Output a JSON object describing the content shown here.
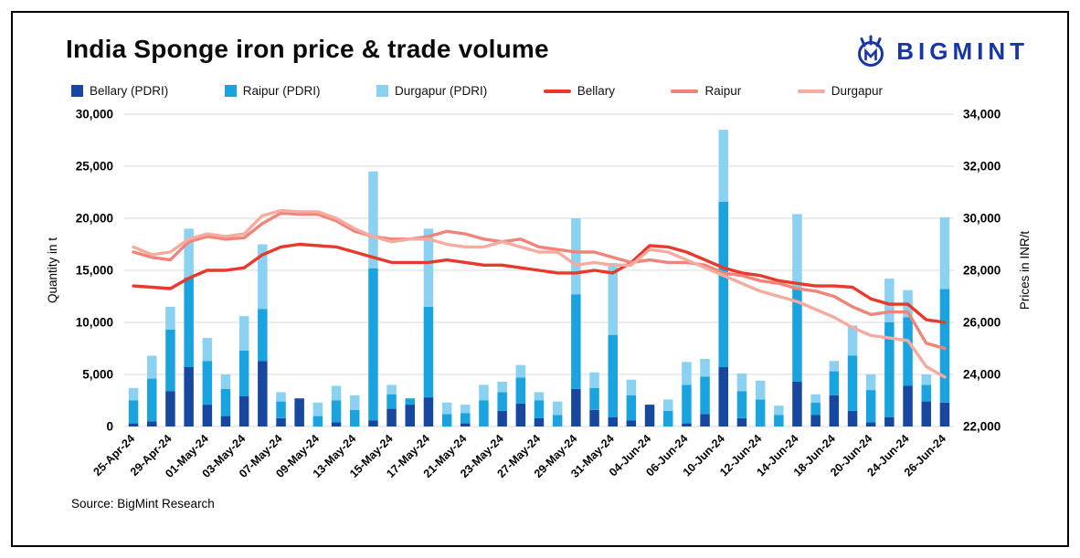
{
  "header": {
    "title": "India Sponge iron price & trade volume",
    "logo_text": "BIGMINT"
  },
  "source": "Source: BigMint Research",
  "chart_data": {
    "type": "bar+line",
    "title": "India Sponge iron price & trade volume",
    "legend_position": "top",
    "grid": true,
    "grid_color": "#d9d9d9",
    "x_tick_interval": 2,
    "categories": [
      "25-Apr-24",
      "26-Apr-24",
      "29-Apr-24",
      "30-Apr-24",
      "01-May-24",
      "02-May-24",
      "03-May-24",
      "06-May-24",
      "07-May-24",
      "08-May-24",
      "09-May-24",
      "10-May-24",
      "13-May-24",
      "14-May-24",
      "15-May-24",
      "16-May-24",
      "17-May-24",
      "20-May-24",
      "21-May-24",
      "22-May-24",
      "23-May-24",
      "24-May-24",
      "27-May-24",
      "28-May-24",
      "29-May-24",
      "30-May-24",
      "31-May-24",
      "03-Jun-24",
      "04-Jun-24",
      "05-Jun-24",
      "06-Jun-24",
      "07-Jun-24",
      "10-Jun-24",
      "11-Jun-24",
      "12-Jun-24",
      "13-Jun-24",
      "14-Jun-24",
      "17-Jun-24",
      "18-Jun-24",
      "19-Jun-24",
      "20-Jun-24",
      "21-Jun-24",
      "24-Jun-24",
      "25-Jun-24",
      "26-Jun-24"
    ],
    "visible_x_tick_labels": [
      "25-Apr-24",
      "29-Apr-24",
      "01-May-24",
      "03-May-24",
      "07-May-24",
      "09-May-24",
      "13-May-24",
      "15-May-24",
      "17-May-24",
      "21-May-24",
      "23-May-24",
      "27-May-24",
      "29-May-24",
      "31-May-24",
      "04-Jun-24",
      "06-Jun-24",
      "10-Jun-24",
      "12-Jun-24",
      "14-Jun-24",
      "18-Jun-24",
      "20-Jun-24",
      "24-Jun-24",
      "26-Jun-24"
    ],
    "left_axis": {
      "title": "Quantity in t",
      "min": 0,
      "max": 30000,
      "step": 5000
    },
    "right_axis": {
      "title": "Prices in INR/t",
      "min": 22000,
      "max": 34000,
      "step": 2000
    },
    "bar_series": [
      {
        "name": "Bellary (PDRI)",
        "color": "#17479e",
        "axis": "left",
        "values": [
          300,
          500,
          3400,
          5700,
          2100,
          1000,
          2900,
          6300,
          800,
          2700,
          0,
          400,
          0,
          600,
          1700,
          2100,
          2800,
          0,
          300,
          0,
          1500,
          2200,
          800,
          0,
          3600,
          1600,
          900,
          600,
          2100,
          0,
          300,
          1200,
          5700,
          800,
          0,
          0,
          4300,
          1100,
          3000,
          1500,
          400,
          900,
          3900,
          2400,
          2300
        ]
      },
      {
        "name": "Raipur (PDRI)",
        "color": "#19a4df",
        "axis": "left",
        "values": [
          2200,
          4100,
          5900,
          8600,
          4200,
          2600,
          4400,
          5000,
          1600,
          0,
          1000,
          2100,
          1600,
          14600,
          1400,
          600,
          8700,
          1200,
          1000,
          2500,
          1800,
          2500,
          1700,
          1100,
          9100,
          2100,
          7900,
          2400,
          0,
          1500,
          3700,
          3600,
          15900,
          2600,
          2600,
          1100,
          9000,
          1200,
          2300,
          5300,
          3100,
          9100,
          6600,
          1600,
          10900
        ]
      },
      {
        "name": "Durgapur (PDRI)",
        "color": "#8ad1f2",
        "axis": "left",
        "values": [
          1200,
          2200,
          2200,
          4700,
          2200,
          1400,
          3300,
          6200,
          900,
          0,
          1300,
          1400,
          1400,
          9300,
          900,
          0,
          7500,
          1100,
          800,
          1500,
          1000,
          1200,
          800,
          1300,
          7300,
          1500,
          6900,
          1500,
          0,
          1100,
          2200,
          1700,
          6900,
          1700,
          1800,
          900,
          7100,
          800,
          1000,
          2900,
          1500,
          4200,
          2600,
          1000,
          6900
        ]
      }
    ],
    "line_series": [
      {
        "name": "Bellary",
        "color": "#e8392d",
        "axis": "right",
        "values": [
          27400,
          27350,
          27300,
          27700,
          28000,
          28000,
          28100,
          28600,
          28900,
          29000,
          28950,
          28900,
          28700,
          28500,
          28300,
          28300,
          28300,
          28400,
          28300,
          28200,
          28200,
          28100,
          28000,
          27900,
          27900,
          28000,
          27900,
          28300,
          28950,
          28900,
          28700,
          28400,
          28100,
          27900,
          27800,
          27600,
          27500,
          27400,
          27400,
          27350,
          26900,
          26700,
          26700,
          26100,
          26000
        ]
      },
      {
        "name": "Raipur",
        "color": "#f08478",
        "axis": "right",
        "values": [
          28700,
          28500,
          28400,
          29100,
          29300,
          29200,
          29250,
          29800,
          30200,
          30150,
          30150,
          29900,
          29500,
          29300,
          29200,
          29200,
          29300,
          29500,
          29400,
          29200,
          29100,
          29200,
          28900,
          28800,
          28700,
          28700,
          28500,
          28300,
          28400,
          28300,
          28300,
          28200,
          27900,
          27800,
          27600,
          27500,
          27300,
          27200,
          27000,
          26600,
          26300,
          26400,
          26400,
          25200,
          25000
        ]
      },
      {
        "name": "Durgapur",
        "color": "#f5ab9f",
        "axis": "right",
        "values": [
          28900,
          28600,
          28700,
          29200,
          29400,
          29300,
          29400,
          30100,
          30300,
          30250,
          30250,
          30000,
          29600,
          29300,
          29100,
          29200,
          29200,
          29000,
          28900,
          28900,
          29100,
          28900,
          28700,
          28700,
          28200,
          28300,
          28200,
          28200,
          28800,
          28700,
          28400,
          28100,
          27800,
          27500,
          27200,
          27000,
          26800,
          26500,
          26200,
          25800,
          25500,
          25400,
          25300,
          24300,
          23900
        ]
      }
    ]
  }
}
